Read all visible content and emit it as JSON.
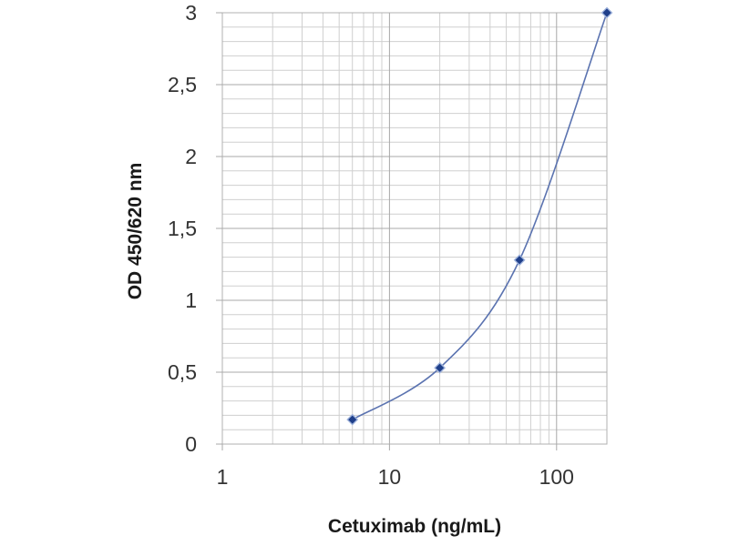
{
  "chart_data": {
    "type": "scatter",
    "title": "",
    "xlabel": "Cetuximab (ng/mL)",
    "ylabel": "OD 450/620 nm",
    "x_scale": "log",
    "xlim": [
      1,
      200
    ],
    "ylim": [
      0,
      3
    ],
    "x_ticks": [
      1,
      10,
      100
    ],
    "x_tick_labels": [
      "1",
      "10",
      "100"
    ],
    "y_ticks": [
      0,
      0.5,
      1,
      1.5,
      2,
      2.5,
      3
    ],
    "y_tick_labels": [
      "0",
      "0,5",
      "1",
      "1,5",
      "2",
      "2,5",
      "3"
    ],
    "grid": true,
    "legend": "none",
    "series": [
      {
        "x": [
          6,
          20,
          60,
          200
        ],
        "y": [
          0.17,
          0.53,
          1.28,
          3.0
        ],
        "marker": "diamond",
        "line": "smooth",
        "color": "#1f3f8a",
        "line_color": "#5b73b0"
      }
    ]
  }
}
